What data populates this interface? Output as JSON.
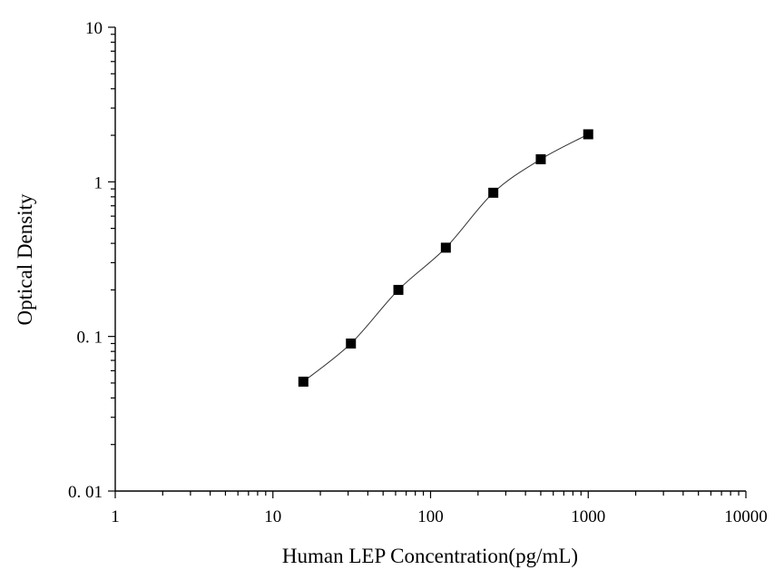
{
  "chart_data": {
    "type": "scatter",
    "xlabel": "Human LEP Concentration(pg/mL)",
    "ylabel": "Optical Density",
    "xscale": "log",
    "yscale": "log",
    "xlim": [
      1,
      10000
    ],
    "ylim": [
      0.01,
      10
    ],
    "x_tick_labels": [
      "1",
      "10",
      "100",
      "1000",
      "10000"
    ],
    "x_tick_values": [
      1,
      10,
      100,
      1000,
      10000
    ],
    "y_tick_labels": [
      "0. 01",
      "0. 1",
      "1",
      "10"
    ],
    "y_tick_values": [
      0.01,
      0.1,
      1,
      10
    ],
    "grid": false,
    "legend": "none",
    "series": [
      {
        "marker": "square",
        "color": "#000000",
        "x": [
          15.6,
          31.25,
          62.5,
          125,
          250,
          500,
          1000
        ],
        "y": [
          0.051,
          0.09,
          0.2,
          0.375,
          0.85,
          1.4,
          2.03
        ]
      }
    ]
  }
}
